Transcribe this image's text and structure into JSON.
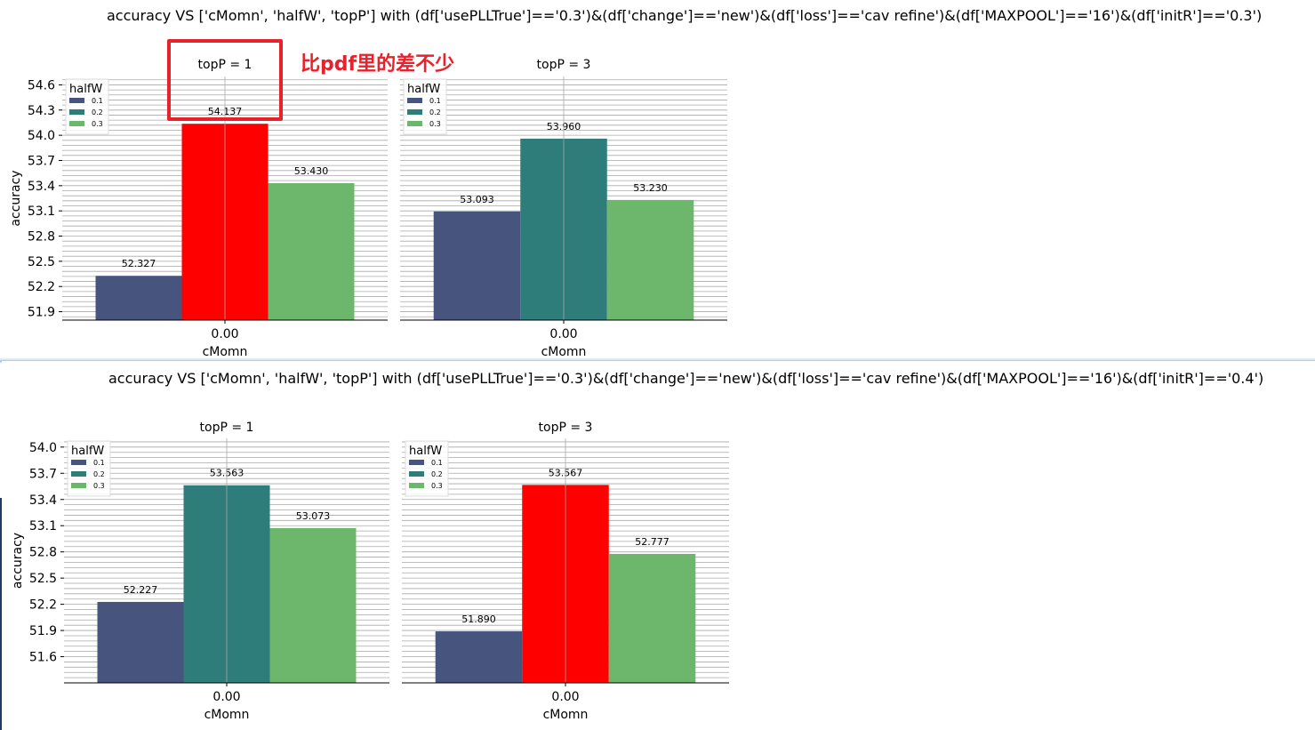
{
  "figures": [
    {
      "suptitle": "accuracy VS ['cMomn', 'halfW', 'topP'] with (df['usePLLTrue']=='0.3')&(df['change']=='new')&(df['loss']=='cav refine')&(df['MAXPOOL']=='16')&(df['initR']=='0.3')",
      "annotation": "比pdf里的差不少"
    },
    {
      "suptitle": "accuracy VS ['cMomn', 'halfW', 'topP'] with (df['usePLLTrue']=='0.3')&(df['change']=='new')&(df['loss']=='cav refine')&(df['MAXPOOL']=='16')&(df['initR']=='0.4')"
    }
  ],
  "colors": {
    "0.1": "#46547e",
    "0.2": "#2e7d7a",
    "0.3": "#6db76d",
    "highlight": "#ff0000",
    "annotation": "#e8212b"
  },
  "chart_data": [
    {
      "type": "bar",
      "title": "topP = 1",
      "xlabel": "cMomn",
      "ylabel": "accuracy",
      "categories": [
        "0.00"
      ],
      "legend_title": "halfW",
      "legend_position": "top-left",
      "grid": true,
      "ylim": [
        51.8,
        54.7
      ],
      "yticks": [
        "51.9",
        "52.2",
        "52.5",
        "52.8",
        "53.1",
        "53.4",
        "53.7",
        "54.0",
        "54.3",
        "54.6"
      ],
      "series": [
        {
          "name": "0.1",
          "values": [
            52.327
          ],
          "labels": [
            "52.327"
          ],
          "color": "#46547e"
        },
        {
          "name": "0.2",
          "values": [
            54.137
          ],
          "labels": [
            "54.137"
          ],
          "color": "#ff0000"
        },
        {
          "name": "0.3",
          "values": [
            53.43
          ],
          "labels": [
            "53.430"
          ],
          "color": "#6db76d"
        }
      ]
    },
    {
      "type": "bar",
      "title": "topP = 3",
      "xlabel": "cMomn",
      "ylabel": "",
      "categories": [
        "0.00"
      ],
      "legend_title": "halfW",
      "legend_position": "top-left",
      "grid": true,
      "ylim": [
        51.8,
        54.7
      ],
      "series": [
        {
          "name": "0.1",
          "values": [
            53.093
          ],
          "labels": [
            "53.093"
          ],
          "color": "#46547e"
        },
        {
          "name": "0.2",
          "values": [
            53.96
          ],
          "labels": [
            "53.960"
          ],
          "color": "#2e7d7a"
        },
        {
          "name": "0.3",
          "values": [
            53.23
          ],
          "labels": [
            "53.230"
          ],
          "color": "#6db76d"
        }
      ]
    },
    {
      "type": "bar",
      "title": "topP = 1",
      "xlabel": "cMomn",
      "ylabel": "accuracy",
      "categories": [
        "0.00"
      ],
      "legend_title": "halfW",
      "legend_position": "top-left",
      "grid": true,
      "ylim": [
        51.3,
        54.1
      ],
      "yticks": [
        "51.6",
        "51.9",
        "52.2",
        "52.5",
        "52.8",
        "53.1",
        "53.4",
        "53.7",
        "54.0"
      ],
      "series": [
        {
          "name": "0.1",
          "values": [
            52.227
          ],
          "labels": [
            "52.227"
          ],
          "color": "#46547e"
        },
        {
          "name": "0.2",
          "values": [
            53.563
          ],
          "labels": [
            "53.563"
          ],
          "color": "#2e7d7a"
        },
        {
          "name": "0.3",
          "values": [
            53.073
          ],
          "labels": [
            "53.073"
          ],
          "color": "#6db76d"
        }
      ]
    },
    {
      "type": "bar",
      "title": "topP = 3",
      "xlabel": "cMomn",
      "ylabel": "",
      "categories": [
        "0.00"
      ],
      "legend_title": "halfW",
      "legend_position": "top-left",
      "grid": true,
      "ylim": [
        51.3,
        54.1
      ],
      "series": [
        {
          "name": "0.1",
          "values": [
            51.89
          ],
          "labels": [
            "51.890"
          ],
          "color": "#46547e"
        },
        {
          "name": "0.2",
          "values": [
            53.567
          ],
          "labels": [
            "53.567"
          ],
          "color": "#ff0000"
        },
        {
          "name": "0.3",
          "values": [
            52.777
          ],
          "labels": [
            "52.777"
          ],
          "color": "#6db76d"
        }
      ]
    }
  ]
}
